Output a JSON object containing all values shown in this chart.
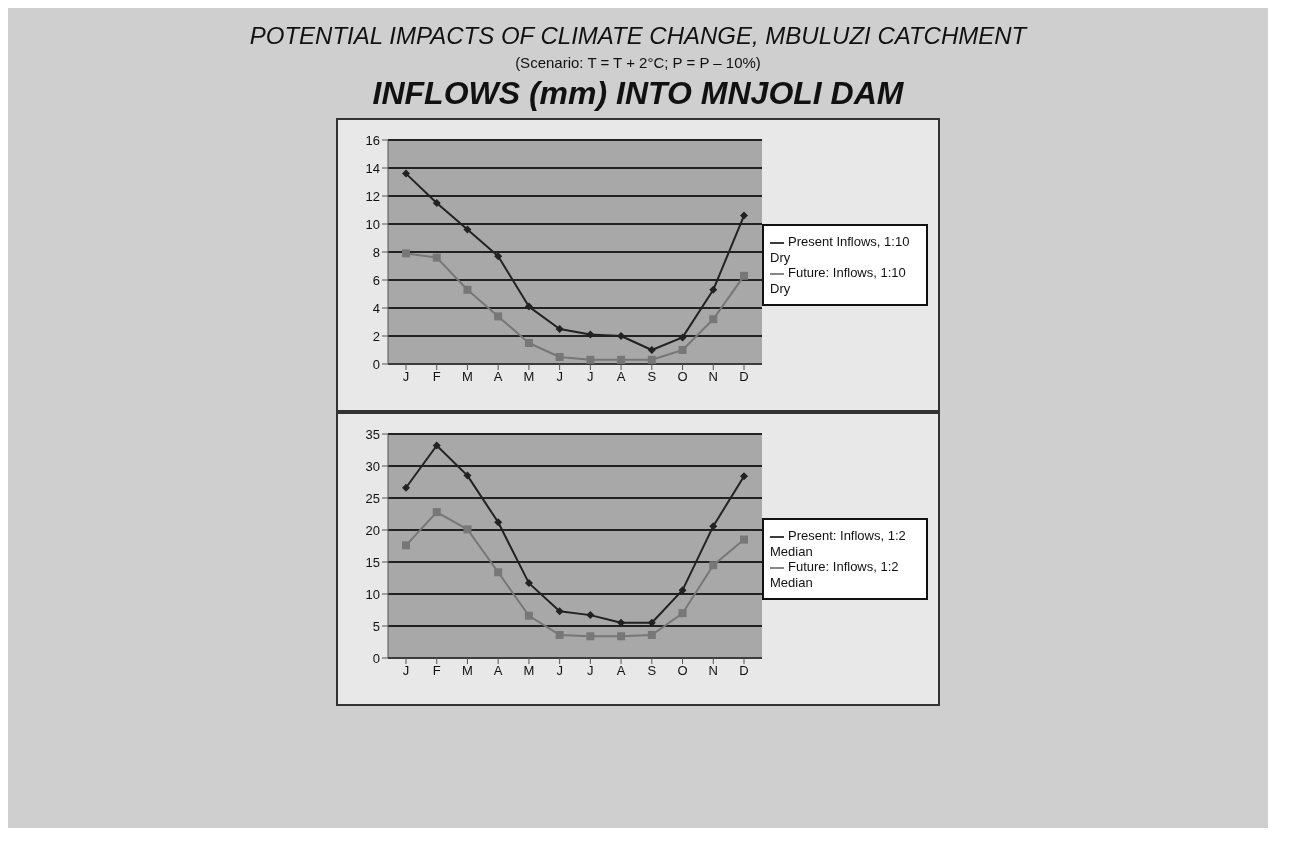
{
  "chart_data": [
    {
      "type": "line",
      "title": "POTENTIAL IMPACTS OF CLIMATE CHANGE, MBULUZI CATCHMENT",
      "subtitle": "(Scenario: T = T + 2°C; P = P – 10%)",
      "annotations": [
        "INFLOWS (mm) INTO MNJOLI DAM"
      ],
      "categories": [
        "J",
        "F",
        "M",
        "A",
        "M",
        "J",
        "J",
        "A",
        "S",
        "O",
        "N",
        "D"
      ],
      "ylim": [
        0,
        16
      ],
      "yticks": [
        0,
        2,
        4,
        6,
        8,
        10,
        12,
        14,
        16
      ],
      "grid": "y",
      "legend": "right",
      "series": [
        {
          "name": "Present Inflows, 1:10 Dry",
          "color": "#222222",
          "marker": "diamond",
          "values": [
            13.6,
            11.5,
            9.6,
            7.7,
            4.1,
            2.5,
            2.1,
            2.0,
            1.0,
            1.9,
            5.3,
            10.6
          ]
        },
        {
          "name": "Future: Inflows, 1:10 Dry",
          "color": "#777777",
          "marker": "square",
          "values": [
            7.9,
            7.6,
            5.3,
            3.4,
            1.5,
            0.5,
            0.3,
            0.3,
            0.3,
            1.0,
            3.2,
            6.3
          ]
        }
      ]
    },
    {
      "type": "line",
      "categories": [
        "J",
        "F",
        "M",
        "A",
        "M",
        "J",
        "J",
        "A",
        "S",
        "O",
        "N",
        "D"
      ],
      "ylim": [
        0,
        35
      ],
      "yticks": [
        0,
        5,
        10,
        15,
        20,
        25,
        30,
        35
      ],
      "grid": "y",
      "legend": "right",
      "series": [
        {
          "name": "Present: Inflows, 1:2 Median",
          "color": "#222222",
          "marker": "diamond",
          "values": [
            26.6,
            33.2,
            28.5,
            21.2,
            11.7,
            7.3,
            6.7,
            5.5,
            5.5,
            10.6,
            20.6,
            28.4
          ]
        },
        {
          "name": "Future: Inflows, 1:2 Median",
          "color": "#777777",
          "marker": "square",
          "values": [
            17.6,
            22.8,
            20.1,
            13.4,
            6.6,
            3.6,
            3.4,
            3.4,
            3.6,
            7.0,
            14.5,
            18.5
          ]
        }
      ]
    }
  ]
}
